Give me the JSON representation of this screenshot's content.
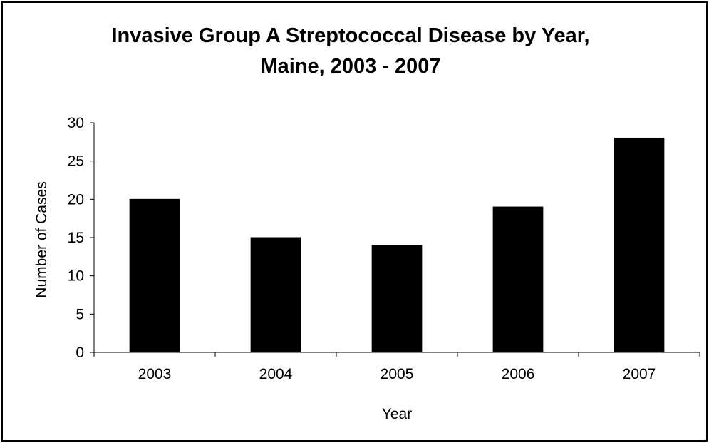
{
  "chart_data": {
    "type": "bar",
    "title_lines": [
      "Invasive Group A Streptococcal Disease by Year,",
      "Maine, 2003 - 2007"
    ],
    "categories": [
      "2003",
      "2004",
      "2005",
      "2006",
      "2007"
    ],
    "values": [
      20,
      15,
      14,
      19,
      28
    ],
    "xlabel": "Year",
    "ylabel": "Number of Cases",
    "ylim": [
      0,
      30
    ],
    "yticks": [
      "0",
      "5",
      "10",
      "15",
      "20",
      "25",
      "30"
    ],
    "grid": false,
    "legend": "none",
    "bar_color": "#000000"
  }
}
